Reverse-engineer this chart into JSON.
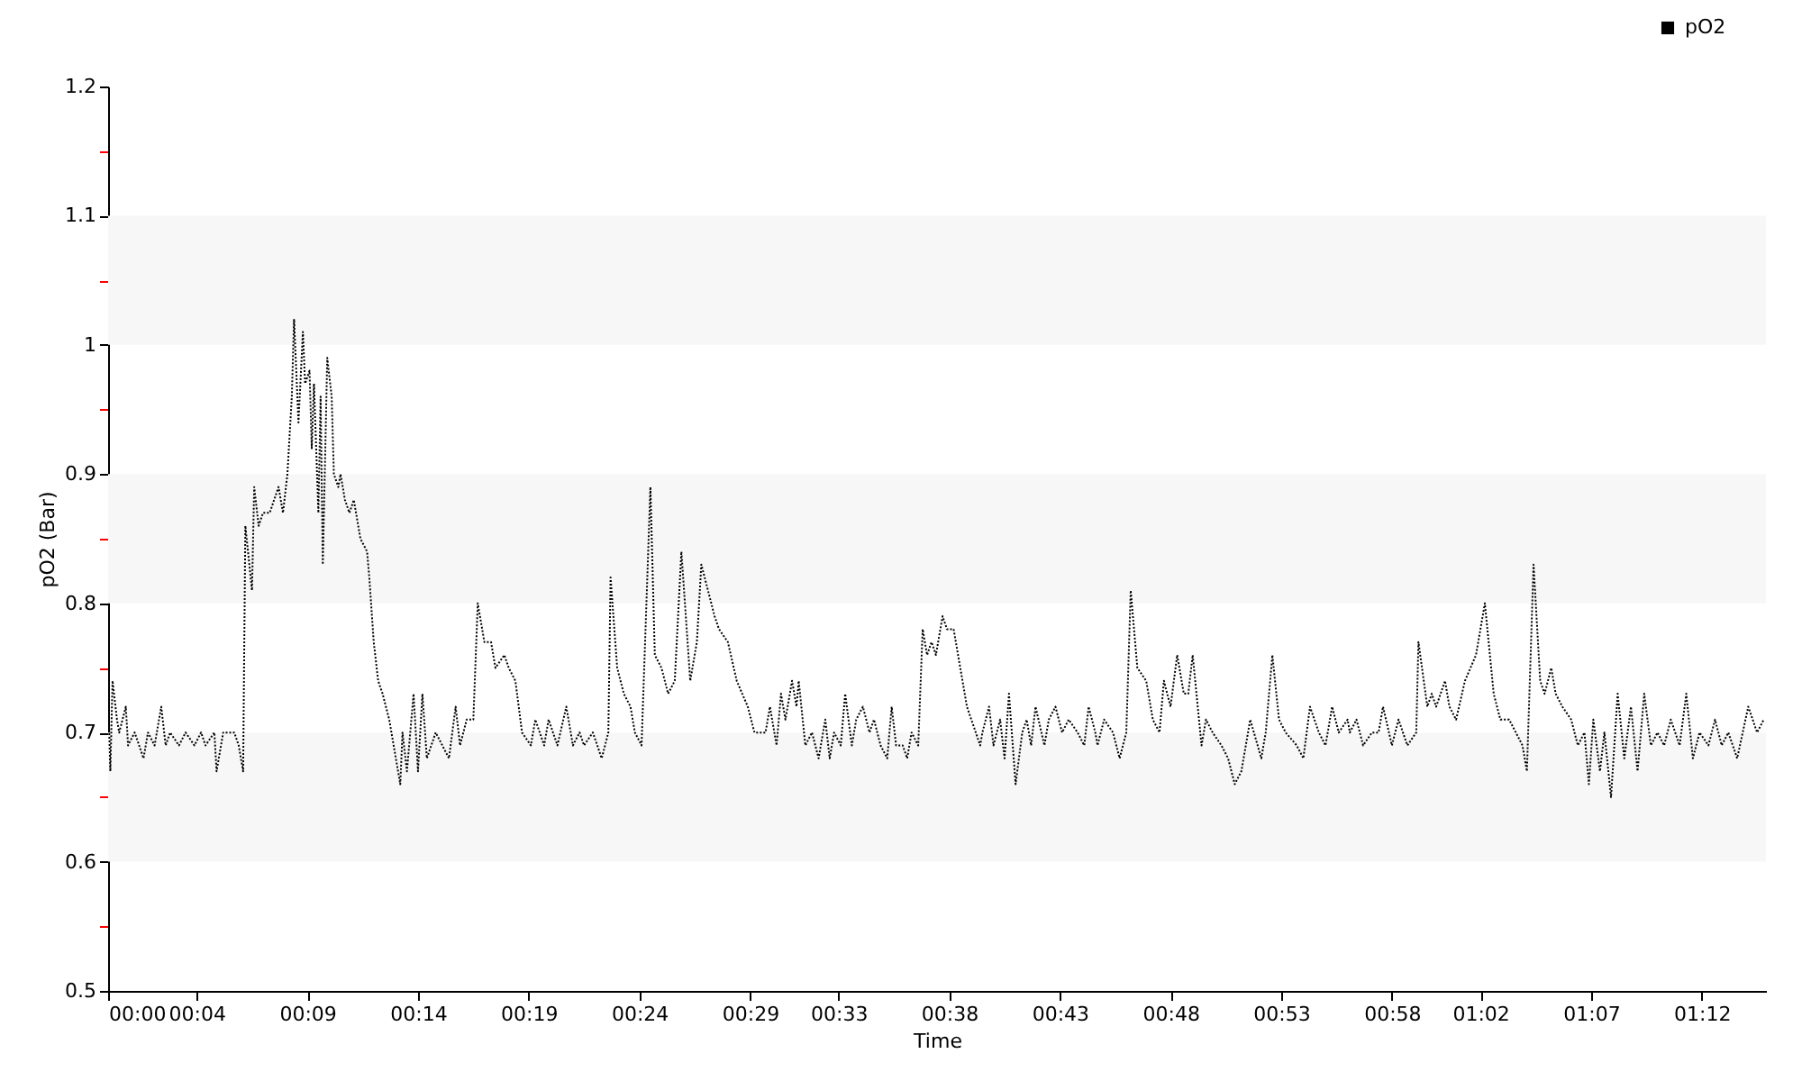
{
  "chart_data": {
    "type": "line",
    "xlabel": "Time",
    "ylabel": "pO2 (Bar)",
    "xlim": [
      0,
      74.9
    ],
    "xticks": [
      {
        "value": 0,
        "label": "00:00"
      },
      {
        "value": 4,
        "label": "00:04"
      },
      {
        "value": 9,
        "label": "00:09"
      },
      {
        "value": 14,
        "label": "00:14"
      },
      {
        "value": 19,
        "label": "00:19"
      },
      {
        "value": 24,
        "label": "00:24"
      },
      {
        "value": 29,
        "label": "00:29"
      },
      {
        "value": 33,
        "label": "00:33"
      },
      {
        "value": 38,
        "label": "00:38"
      },
      {
        "value": 43,
        "label": "00:43"
      },
      {
        "value": 48,
        "label": "00:48"
      },
      {
        "value": 53,
        "label": "00:53"
      },
      {
        "value": 58,
        "label": "00:58"
      },
      {
        "value": 62,
        "label": "01:02"
      },
      {
        "value": 67,
        "label": "01:07"
      },
      {
        "value": 72,
        "label": "01:12"
      }
    ],
    "ylim": [
      0.5,
      1.2
    ],
    "yticks": [
      0.5,
      {
        "value": 0.55,
        "label": null
      },
      0.6,
      {
        "value": 0.65,
        "label": null
      },
      0.7,
      {
        "value": 0.75,
        "label": null
      },
      0.8,
      {
        "value": 0.85,
        "label": null
      },
      0.9,
      {
        "value": 0.95,
        "label": null
      },
      1,
      {
        "value": 1.05,
        "label": null
      },
      1.1,
      {
        "value": 1.15,
        "label": null
      },
      1.2
    ],
    "grid": false,
    "legend": "top right",
    "line_style": "dotted",
    "marker": "none",
    "bands": [
      {
        "axis": "y",
        "from": 0.6,
        "to": 0.7,
        "color": "#f7f7f7"
      },
      {
        "axis": "y",
        "from": 0.8,
        "to": 0.9,
        "color": "#f7f7f7"
      },
      {
        "axis": "y",
        "from": 1.0,
        "to": 1.1,
        "color": "#f7f7f7"
      }
    ],
    "series": [
      {
        "name": "pO2",
        "color": "#000000",
        "x": [
          0.0,
          0.1,
          0.2,
          0.4,
          0.5,
          0.8,
          0.9,
          1.2,
          1.6,
          1.8,
          2.1,
          2.4,
          2.6,
          2.8,
          3.2,
          3.5,
          3.9,
          4.2,
          4.4,
          4.8,
          4.9,
          5.2,
          5.7,
          5.9,
          6.1,
          6.2,
          6.5,
          6.6,
          6.8,
          7.0,
          7.3,
          7.5,
          7.7,
          7.9,
          8.1,
          8.3,
          8.4,
          8.6,
          8.8,
          8.9,
          9.1,
          9.2,
          9.3,
          9.5,
          9.6,
          9.7,
          9.9,
          10.1,
          10.2,
          10.4,
          10.5,
          10.7,
          10.9,
          11.1,
          11.4,
          11.7,
          11.8,
          12.0,
          12.2,
          12.4,
          12.7,
          12.8,
          13.0,
          13.2,
          13.3,
          13.5,
          13.8,
          14.0,
          14.2,
          14.4,
          14.8,
          15.1,
          15.4,
          15.7,
          15.9,
          16.2,
          16.5,
          16.7,
          17.0,
          17.3,
          17.5,
          17.9,
          18.1,
          18.4,
          18.7,
          19.1,
          19.3,
          19.7,
          19.9,
          20.3,
          20.7,
          21.0,
          21.3,
          21.5,
          21.9,
          22.3,
          22.6,
          22.7,
          23.0,
          23.3,
          23.6,
          23.8,
          24.1,
          24.5,
          24.7,
          25.0,
          25.3,
          25.6,
          25.9,
          26.3,
          26.6,
          26.8,
          27.1,
          27.4,
          27.6,
          28.0,
          28.4,
          28.9,
          29.2,
          29.7,
          29.9,
          30.2,
          30.4,
          30.6,
          30.9,
          31.1,
          31.2,
          31.5,
          31.8,
          32.1,
          32.4,
          32.6,
          32.8,
          33.1,
          33.3,
          33.6,
          33.8,
          34.1,
          34.4,
          34.6,
          34.9,
          35.2,
          35.4,
          35.6,
          35.9,
          36.1,
          36.3,
          36.6,
          36.8,
          37.0,
          37.2,
          37.4,
          37.7,
          37.9,
          38.2,
          38.5,
          38.8,
          39.0,
          39.4,
          39.5,
          39.8,
          40.0,
          40.3,
          40.5,
          40.7,
          41.0,
          41.3,
          41.5,
          41.7,
          41.9,
          42.3,
          42.5,
          42.8,
          43.1,
          43.4,
          43.8,
          44.1,
          44.3,
          44.6,
          44.7,
          45.0,
          45.4,
          45.7,
          46.0,
          46.2,
          46.5,
          46.9,
          47.2,
          47.5,
          47.7,
          48.0,
          48.3,
          48.6,
          48.8,
          49.0,
          49.4,
          49.6,
          49.9,
          50.3,
          50.6,
          50.9,
          51.2,
          51.6,
          52.1,
          52.3,
          52.6,
          52.9,
          53.2,
          53.7,
          54.0,
          54.3,
          54.7,
          55.0,
          55.3,
          55.6,
          56.0,
          56.1,
          56.4,
          56.7,
          57.1,
          57.4,
          57.6,
          58.0,
          58.3,
          58.7,
          59.1,
          59.2,
          59.6,
          59.8,
          60.0,
          60.4,
          60.6,
          60.9,
          61.3,
          61.8,
          62.2,
          62.6,
          62.9,
          63.3,
          63.6,
          63.9,
          64.1,
          64.4,
          64.7,
          64.9,
          65.2,
          65.4,
          65.7,
          66.1,
          66.4,
          66.7,
          66.9,
          67.1,
          67.4,
          67.6,
          67.9,
          68.2,
          68.5,
          68.8,
          69.1,
          69.4,
          69.7,
          70.0,
          70.3,
          70.6,
          71.0,
          71.3,
          71.6,
          71.9,
          72.3,
          72.6,
          72.9,
          73.2,
          73.6,
          74.1,
          74.5,
          74.8
        ],
        "values": [
          0.73,
          0.67,
          0.74,
          0.71,
          0.7,
          0.72,
          0.69,
          0.7,
          0.68,
          0.7,
          0.69,
          0.72,
          0.69,
          0.7,
          0.69,
          0.7,
          0.69,
          0.7,
          0.69,
          0.7,
          0.67,
          0.7,
          0.7,
          0.69,
          0.67,
          0.86,
          0.81,
          0.89,
          0.86,
          0.87,
          0.87,
          0.88,
          0.89,
          0.87,
          0.9,
          0.96,
          1.02,
          0.94,
          1.01,
          0.97,
          0.98,
          0.92,
          0.97,
          0.87,
          0.96,
          0.83,
          0.99,
          0.96,
          0.9,
          0.89,
          0.9,
          0.88,
          0.87,
          0.88,
          0.85,
          0.84,
          0.82,
          0.77,
          0.74,
          0.73,
          0.71,
          0.7,
          0.68,
          0.66,
          0.7,
          0.67,
          0.73,
          0.67,
          0.73,
          0.68,
          0.7,
          0.69,
          0.68,
          0.72,
          0.69,
          0.71,
          0.71,
          0.8,
          0.77,
          0.77,
          0.75,
          0.76,
          0.75,
          0.74,
          0.7,
          0.69,
          0.71,
          0.69,
          0.71,
          0.69,
          0.72,
          0.69,
          0.7,
          0.69,
          0.7,
          0.68,
          0.7,
          0.82,
          0.75,
          0.73,
          0.72,
          0.7,
          0.69,
          0.89,
          0.76,
          0.75,
          0.73,
          0.74,
          0.84,
          0.74,
          0.77,
          0.83,
          0.81,
          0.79,
          0.78,
          0.77,
          0.74,
          0.72,
          0.7,
          0.7,
          0.72,
          0.69,
          0.73,
          0.71,
          0.74,
          0.72,
          0.74,
          0.69,
          0.7,
          0.68,
          0.71,
          0.68,
          0.7,
          0.69,
          0.73,
          0.69,
          0.71,
          0.72,
          0.7,
          0.71,
          0.69,
          0.68,
          0.72,
          0.69,
          0.69,
          0.68,
          0.7,
          0.69,
          0.78,
          0.76,
          0.77,
          0.76,
          0.79,
          0.78,
          0.78,
          0.75,
          0.72,
          0.71,
          0.69,
          0.7,
          0.72,
          0.69,
          0.71,
          0.68,
          0.73,
          0.66,
          0.7,
          0.71,
          0.69,
          0.72,
          0.69,
          0.71,
          0.72,
          0.7,
          0.71,
          0.7,
          0.69,
          0.72,
          0.7,
          0.69,
          0.71,
          0.7,
          0.68,
          0.7,
          0.81,
          0.75,
          0.74,
          0.71,
          0.7,
          0.74,
          0.72,
          0.76,
          0.73,
          0.73,
          0.76,
          0.69,
          0.71,
          0.7,
          0.69,
          0.68,
          0.66,
          0.67,
          0.71,
          0.68,
          0.7,
          0.76,
          0.71,
          0.7,
          0.69,
          0.68,
          0.72,
          0.7,
          0.69,
          0.72,
          0.7,
          0.71,
          0.7,
          0.71,
          0.69,
          0.7,
          0.7,
          0.72,
          0.69,
          0.71,
          0.69,
          0.7,
          0.77,
          0.72,
          0.73,
          0.72,
          0.74,
          0.72,
          0.71,
          0.74,
          0.76,
          0.8,
          0.73,
          0.71,
          0.71,
          0.7,
          0.69,
          0.67,
          0.83,
          0.74,
          0.73,
          0.75,
          0.73,
          0.72,
          0.71,
          0.69,
          0.7,
          0.66,
          0.71,
          0.67,
          0.7,
          0.65,
          0.73,
          0.68,
          0.72,
          0.67,
          0.73,
          0.69,
          0.7,
          0.69,
          0.71,
          0.69,
          0.73,
          0.68,
          0.7,
          0.69,
          0.71,
          0.69,
          0.7,
          0.68,
          0.72,
          0.7,
          0.71
        ]
      }
    ]
  }
}
